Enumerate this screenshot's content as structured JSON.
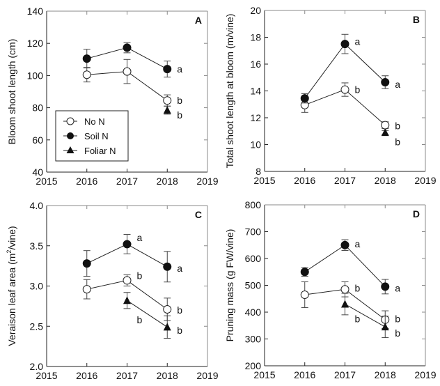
{
  "chart_data": [
    {
      "type": "line",
      "panel": "A",
      "title": "",
      "xlabel": "",
      "ylabel": "Bloom shoot length (cm)",
      "xlim": [
        2015,
        2019
      ],
      "ylim": [
        40,
        140
      ],
      "xticks": [
        2015,
        2016,
        2017,
        2018,
        2019
      ],
      "yticks": [
        40,
        60,
        80,
        100,
        120,
        140
      ],
      "grid": false,
      "legend": {
        "position": "bottom-left",
        "entries": [
          "No N",
          "Soil N",
          "Foliar N"
        ]
      },
      "series": [
        {
          "name": "No N",
          "marker": "open-circle",
          "x": [
            2016,
            2017,
            2018
          ],
          "y": [
            100.5,
            102.5,
            84.5
          ],
          "err": [
            4.5,
            7.5,
            3.5
          ],
          "connected": true
        },
        {
          "name": "Soil N",
          "marker": "filled-circle",
          "x": [
            2016,
            2017,
            2018
          ],
          "y": [
            110.5,
            117.3,
            104
          ],
          "err": [
            5.8,
            3.2,
            5
          ],
          "connected": true
        },
        {
          "name": "Foliar N",
          "marker": "filled-triangle",
          "x": [
            2018
          ],
          "y": [
            78.5
          ],
          "err": [
            2.5
          ],
          "connected": false
        }
      ],
      "annotations": [
        {
          "text": "a",
          "x": 2018,
          "y": 104
        },
        {
          "text": "b",
          "x": 2018,
          "y": 84.5
        },
        {
          "text": "b",
          "x": 2018,
          "y": 75.5
        }
      ]
    },
    {
      "type": "line",
      "panel": "B",
      "title": "",
      "xlabel": "",
      "ylabel": "Total shoot length at bloom (m/vine)",
      "xlim": [
        2015,
        2019
      ],
      "ylim": [
        8,
        20
      ],
      "xticks": [
        2015,
        2016,
        2017,
        2018,
        2019
      ],
      "yticks": [
        8,
        10,
        12,
        14,
        16,
        18,
        20
      ],
      "grid": false,
      "series": [
        {
          "name": "No N",
          "marker": "open-circle",
          "x": [
            2016,
            2017,
            2018
          ],
          "y": [
            12.95,
            14.1,
            11.45
          ],
          "err": [
            0.55,
            0.5,
            0.25
          ],
          "connected": true
        },
        {
          "name": "Soil N",
          "marker": "filled-circle",
          "x": [
            2016,
            2017,
            2018
          ],
          "y": [
            13.45,
            17.5,
            14.65
          ],
          "err": [
            0.35,
            0.72,
            0.48
          ],
          "connected": true
        },
        {
          "name": "Foliar N",
          "marker": "filled-triangle",
          "x": [
            2018
          ],
          "y": [
            10.9
          ],
          "err": [
            0.15
          ],
          "connected": false
        }
      ],
      "annotations": [
        {
          "text": "a",
          "x": 2017,
          "y": 17.7
        },
        {
          "text": "b",
          "x": 2017,
          "y": 14.1
        },
        {
          "text": "a",
          "x": 2018,
          "y": 14.5
        },
        {
          "text": "b",
          "x": 2018,
          "y": 11.4
        },
        {
          "text": "b",
          "x": 2018,
          "y": 10.2
        }
      ]
    },
    {
      "type": "line",
      "panel": "C",
      "title": "",
      "xlabel": "",
      "ylabel": "Veraison leaf area (m²/vine)",
      "ylabel_parts": [
        "Veraison leaf area (m",
        "2",
        "/vine)"
      ],
      "xlim": [
        2015,
        2019
      ],
      "ylim": [
        2.0,
        4.0
      ],
      "xticks": [
        2015,
        2016,
        2017,
        2018,
        2019
      ],
      "yticks": [
        2.0,
        2.5,
        3.0,
        3.5,
        4.0
      ],
      "grid": false,
      "series": [
        {
          "name": "No N",
          "marker": "open-circle",
          "x": [
            2016,
            2017,
            2018
          ],
          "y": [
            2.96,
            3.07,
            2.71
          ],
          "err": [
            0.12,
            0.07,
            0.14
          ],
          "connected": true
        },
        {
          "name": "Soil N",
          "marker": "filled-circle",
          "x": [
            2016,
            2017,
            2018
          ],
          "y": [
            3.28,
            3.52,
            3.24
          ],
          "err": [
            0.16,
            0.12,
            0.19
          ],
          "connected": true
        },
        {
          "name": "Foliar N",
          "marker": "filled-triangle",
          "x": [
            2017,
            2018
          ],
          "y": [
            2.82,
            2.49
          ],
          "err": [
            0.1,
            0.14
          ],
          "connected": true
        }
      ],
      "annotations": [
        {
          "text": "a",
          "x": 2017,
          "y": 3.6
        },
        {
          "text": "b",
          "x": 2017,
          "y": 3.13
        },
        {
          "text": "b",
          "x": 2017,
          "y": 2.58
        },
        {
          "text": "a",
          "x": 2018,
          "y": 3.22
        },
        {
          "text": "b",
          "x": 2018,
          "y": 2.7
        },
        {
          "text": "b",
          "x": 2018,
          "y": 2.45
        }
      ]
    },
    {
      "type": "line",
      "panel": "D",
      "title": "",
      "xlabel": "",
      "ylabel": "Pruning mass (g FW/vine)",
      "xlim": [
        2015,
        2019
      ],
      "ylim": [
        200,
        800
      ],
      "xticks": [
        2015,
        2016,
        2017,
        2018,
        2019
      ],
      "yticks": [
        200,
        300,
        400,
        500,
        600,
        700,
        800
      ],
      "grid": false,
      "series": [
        {
          "name": "No N",
          "marker": "open-circle",
          "x": [
            2016,
            2017,
            2018
          ],
          "y": [
            465,
            485,
            372
          ],
          "err": [
            48,
            28,
            33
          ],
          "connected": true
        },
        {
          "name": "Soil N",
          "marker": "filled-circle",
          "x": [
            2016,
            2017,
            2018
          ],
          "y": [
            550,
            650,
            495
          ],
          "err": [
            16,
            20,
            27
          ],
          "connected": true
        },
        {
          "name": "Foliar N",
          "marker": "filled-triangle",
          "x": [
            2017,
            2018
          ],
          "y": [
            430,
            345
          ],
          "err": [
            40,
            40
          ],
          "connected": true
        }
      ],
      "annotations": [
        {
          "text": "a",
          "x": 2017,
          "y": 655
        },
        {
          "text": "b",
          "x": 2017,
          "y": 490
        },
        {
          "text": "b",
          "x": 2017,
          "y": 375
        },
        {
          "text": "a",
          "x": 2018,
          "y": 490
        },
        {
          "text": "b",
          "x": 2018,
          "y": 375
        },
        {
          "text": "b",
          "x": 2018,
          "y": 322
        }
      ]
    }
  ]
}
